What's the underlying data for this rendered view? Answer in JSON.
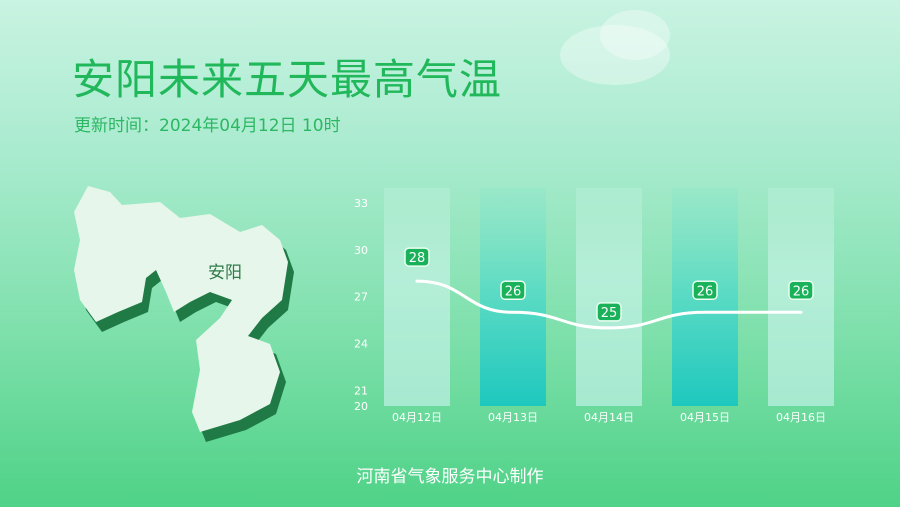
{
  "header": {
    "title": "安阳未来五天最高气温",
    "update_time": "更新时间：2024年04月12日 10时"
  },
  "map": {
    "label": "安阳"
  },
  "footer": {
    "credit": "河南省气象服务中心制作"
  },
  "colors": {
    "title": "#20b85a",
    "badge": "#19b25a",
    "bar_light": "#a6ead0",
    "bar_teal": "#1fc9bd",
    "line": "#ffffff"
  },
  "chart_data": {
    "type": "line",
    "title": "",
    "xlabel": "",
    "ylabel": "",
    "categories": [
      "04月12日",
      "04月13日",
      "04月14日",
      "04月15日",
      "04月16日"
    ],
    "values": [
      28,
      26,
      25,
      26,
      26
    ],
    "data_labels": [
      "28",
      "26",
      "25",
      "26",
      "26"
    ],
    "yticks": [
      20,
      21,
      24,
      27,
      30,
      33
    ],
    "ylim": [
      20,
      33
    ],
    "grid": false,
    "legend": "none"
  }
}
